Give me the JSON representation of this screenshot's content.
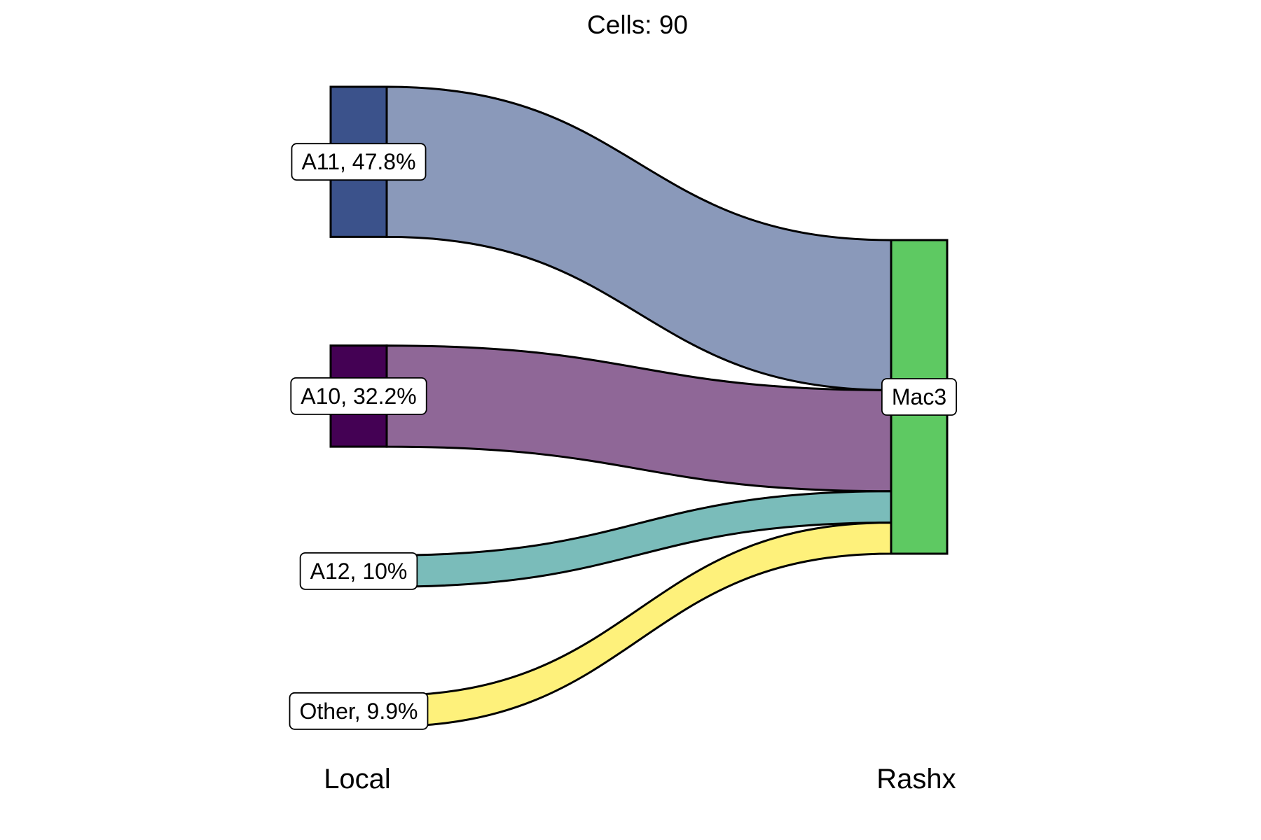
{
  "chart_data": {
    "type": "sankey",
    "title": "Cells:  90",
    "axes": [
      "Local",
      "Rashx"
    ],
    "total": 90,
    "sources": [
      {
        "name": "A11",
        "label": "A11, 47.8%",
        "share": 47.8,
        "color": "#3b528b",
        "flow_color": "#8a99ba"
      },
      {
        "name": "A10",
        "label": "A10, 32.2%",
        "share": 32.2,
        "color": "#440154",
        "flow_color": "#8f6797"
      },
      {
        "name": "A12",
        "label": "A12, 10%",
        "share": 10.0,
        "color": "#21908c",
        "flow_color": "#7abcba"
      },
      {
        "name": "Other",
        "label": "Other, 9.9%",
        "share": 9.9,
        "color": "#fde725",
        "flow_color": "#fef17b"
      }
    ],
    "targets": [
      {
        "name": "Mac3",
        "label": "Mac3",
        "color": "#5ec962"
      }
    ],
    "flows": [
      {
        "from": "A11",
        "to": "Mac3",
        "share": 47.8
      },
      {
        "from": "A10",
        "to": "Mac3",
        "share": 32.2
      },
      {
        "from": "A12",
        "to": "Mac3",
        "share": 10.0
      },
      {
        "from": "Other",
        "to": "Mac3",
        "share": 9.9
      }
    ]
  }
}
